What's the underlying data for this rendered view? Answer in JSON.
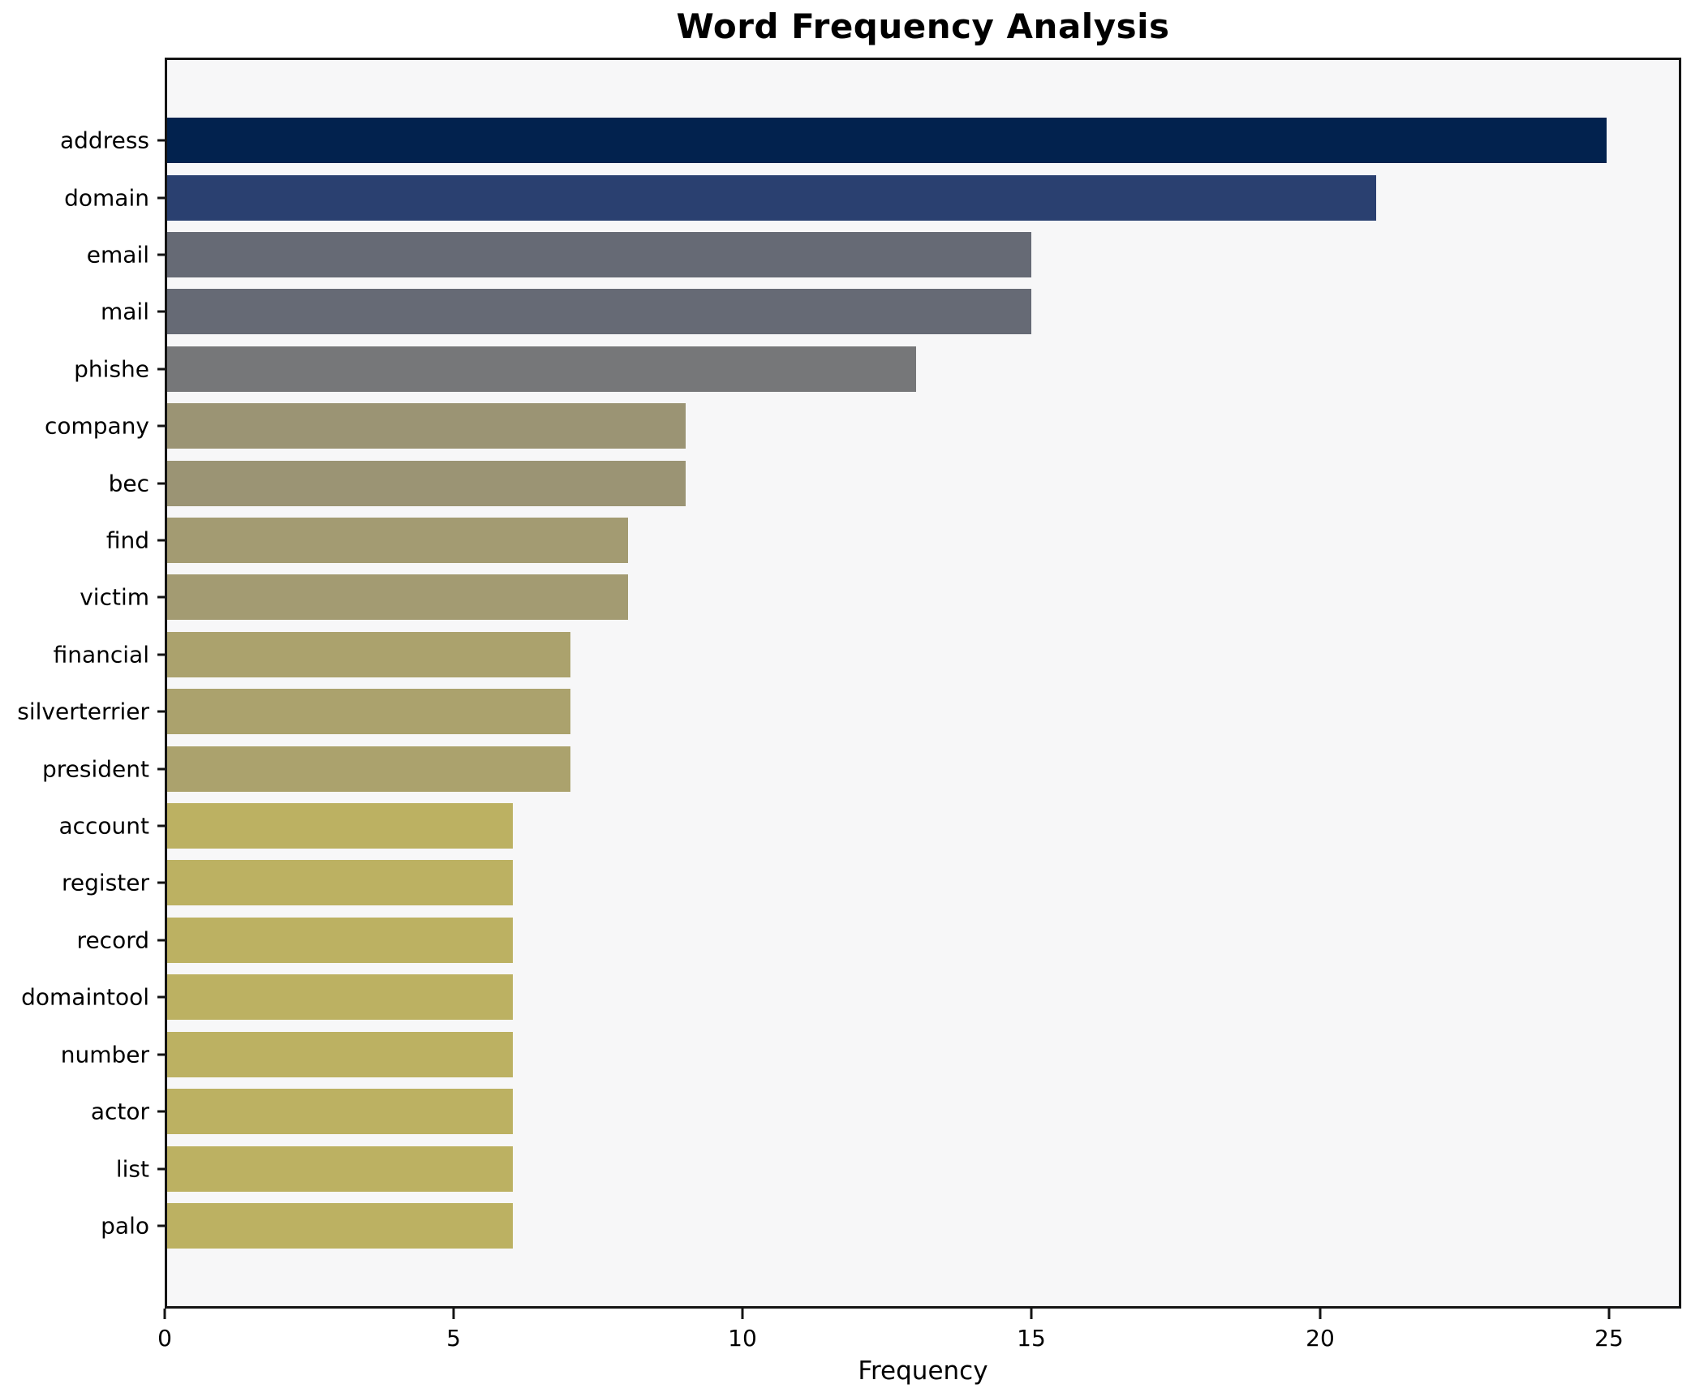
{
  "title": "Word Frequency Analysis",
  "xlabel": "Frequency",
  "chart_data": {
    "type": "bar",
    "orientation": "horizontal",
    "title": "Word Frequency Analysis",
    "xlabel": "Frequency",
    "ylabel": "",
    "categories": [
      "address",
      "domain",
      "email",
      "mail",
      "phishe",
      "company",
      "bec",
      "find",
      "victim",
      "financial",
      "silverterrier",
      "president",
      "account",
      "register",
      "record",
      "domaintool",
      "number",
      "actor",
      "list",
      "palo"
    ],
    "values": [
      25,
      21,
      15,
      15,
      13,
      9,
      9,
      8,
      8,
      7,
      7,
      7,
      6,
      6,
      6,
      6,
      6,
      6,
      6,
      6
    ],
    "bar_colors": [
      "#02224e",
      "#2a4070",
      "#666a75",
      "#666a75",
      "#767779",
      "#9b9474",
      "#9b9474",
      "#a39b72",
      "#a39b72",
      "#aba26d",
      "#aba26d",
      "#aba26d",
      "#bcb162",
      "#bcb162",
      "#bcb162",
      "#bcb162",
      "#bcb162",
      "#bcb162",
      "#bcb162",
      "#bcb162"
    ],
    "xlim": [
      0,
      26.25
    ],
    "x_ticks": [
      0,
      5,
      10,
      15,
      20,
      25
    ],
    "grid": false,
    "legend": null,
    "plot_background": "#f7f7f8",
    "figure_background": "#ffffff",
    "spine_color": "#141414",
    "colormap": "cividis-reversed-by-value"
  }
}
